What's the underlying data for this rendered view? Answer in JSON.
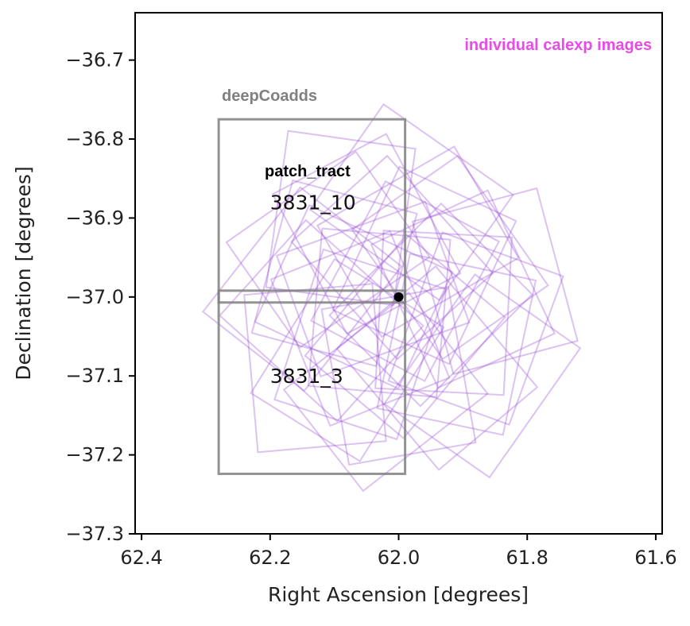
{
  "chart_data": {
    "type": "scatter",
    "xlabel": "Right Ascension [degrees]",
    "ylabel": "Declination [degrees]",
    "xlim": [
      62.41,
      61.59
    ],
    "ylim": [
      -37.3,
      -36.64
    ],
    "x_ticks": [
      62.4,
      62.2,
      62.0,
      61.8,
      61.6
    ],
    "x_tick_labels": [
      "62.4",
      "62.2",
      "62.0",
      "61.8",
      "61.6"
    ],
    "y_ticks": [
      -36.7,
      -36.8,
      -36.9,
      -37.0,
      -37.1,
      -37.2,
      -37.3
    ],
    "y_tick_labels": [
      "−36.7",
      "−36.8",
      "−36.9",
      "−37.0",
      "−37.1",
      "−37.2",
      "−37.3"
    ],
    "x_reversed": true,
    "grid": false,
    "annotations": {
      "calexp_label": "individual calexp images",
      "coadd_label": "deepCoadds",
      "patch_tract_header": "patch_tract"
    },
    "colors": {
      "calexp": "#9b4fd6",
      "calexp_label": "#e94be8",
      "coadd": "#808080",
      "point": "#000000",
      "text": "#222222"
    },
    "point": {
      "ra": 62.0,
      "dec": -37.0
    },
    "deepCoadds": [
      {
        "label": "3831_10",
        "label_ra": 62.2,
        "label_dec": -36.88,
        "ra_min": 61.99,
        "ra_max": 62.28,
        "dec_min": -37.007,
        "dec_max": -36.775
      },
      {
        "label": "3831_3",
        "label_ra": 62.2,
        "label_dec": -37.1,
        "ra_min": 61.99,
        "ra_max": 62.28,
        "dec_min": -37.224,
        "dec_max": -36.992
      }
    ],
    "calexps": [
      {
        "ra": 62.03,
        "dec": -37.02,
        "rot": 5
      },
      {
        "ra": 61.99,
        "dec": -36.98,
        "rot": 28
      },
      {
        "ra": 62.06,
        "dec": -37.04,
        "rot": -22
      },
      {
        "ra": 61.95,
        "dec": -37.01,
        "rot": 45
      },
      {
        "ra": 62.1,
        "dec": -36.97,
        "rot": 15
      },
      {
        "ra": 61.92,
        "dec": -36.95,
        "rot": -35
      },
      {
        "ra": 62.08,
        "dec": -37.08,
        "rot": 32
      },
      {
        "ra": 62.0,
        "dec": -37.1,
        "rot": -10
      },
      {
        "ra": 61.97,
        "dec": -36.93,
        "rot": 60
      },
      {
        "ra": 62.12,
        "dec": -37.03,
        "rot": -48
      },
      {
        "ra": 61.88,
        "dec": -37.04,
        "rot": 20
      },
      {
        "ra": 62.05,
        "dec": -36.92,
        "rot": -28
      },
      {
        "ra": 62.15,
        "dec": -36.99,
        "rot": 38
      },
      {
        "ra": 61.85,
        "dec": -36.98,
        "rot": -15
      },
      {
        "ra": 62.02,
        "dec": -37.12,
        "rot": 52
      },
      {
        "ra": 61.94,
        "dec": -37.09,
        "rot": -40
      },
      {
        "ra": 62.09,
        "dec": -36.9,
        "rot": 8
      },
      {
        "ra": 61.98,
        "dec": -36.88,
        "rot": -55
      },
      {
        "ra": 62.04,
        "dec": -36.99,
        "rot": 70
      },
      {
        "ra": 61.91,
        "dec": -37.06,
        "rot": 12
      },
      {
        "ra": 62.13,
        "dec": -37.09,
        "rot": -5
      },
      {
        "ra": 61.96,
        "dec": -36.96,
        "rot": 25
      },
      {
        "ra": 62.07,
        "dec": -37.0,
        "rot": -65
      },
      {
        "ra": 61.99,
        "dec": -37.05,
        "rot": 40
      },
      {
        "ra": 61.9,
        "dec": -36.99,
        "rot": -25
      },
      {
        "ra": 62.11,
        "dec": -36.94,
        "rot": 55
      },
      {
        "ra": 61.87,
        "dec": -37.1,
        "rot": 35
      },
      {
        "ra": 62.01,
        "dec": -36.95,
        "rot": -42
      },
      {
        "ra": 61.93,
        "dec": -37.02,
        "rot": 3
      },
      {
        "ra": 62.06,
        "dec": -37.06,
        "rot": 18
      }
    ]
  }
}
